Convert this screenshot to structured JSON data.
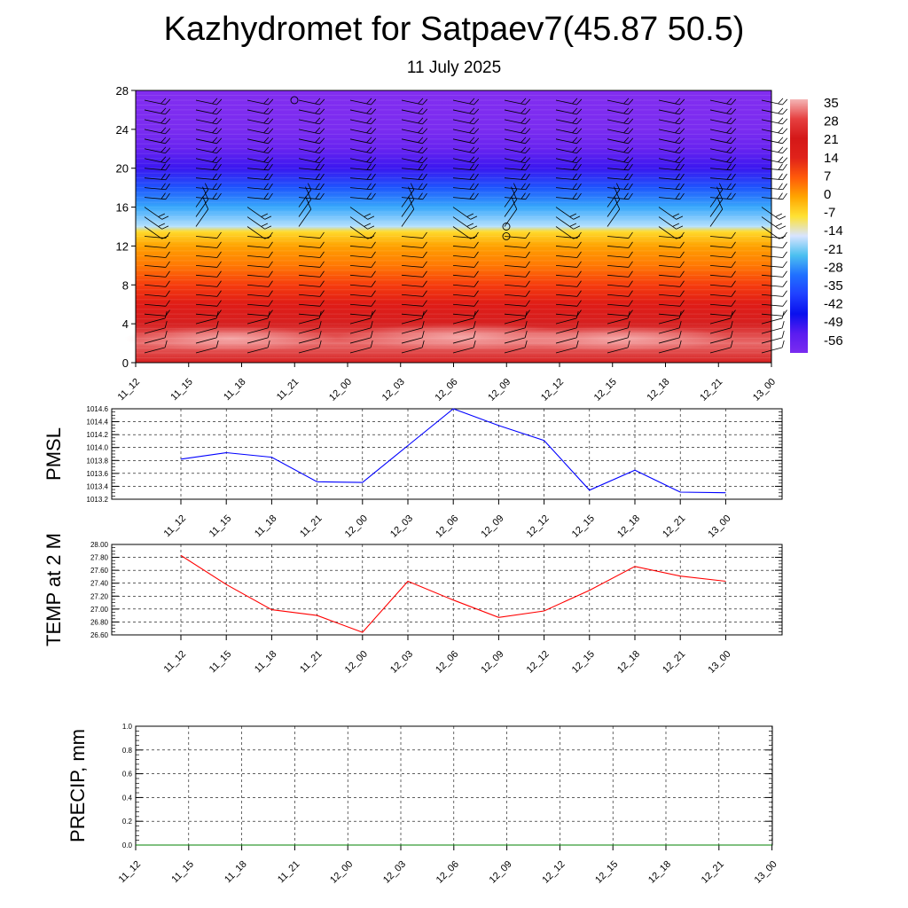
{
  "header": {
    "title": "Kazhydromet for Satpaev7(45.87 50.5)",
    "subtitle": "11 July 2025"
  },
  "time_labels": [
    "11_12",
    "11_15",
    "11_18",
    "11_21",
    "12_00",
    "12_03",
    "12_06",
    "12_09",
    "12_12",
    "12_15",
    "12_18",
    "12_21",
    "13_00"
  ],
  "chart_data": [
    {
      "type": "heatmap",
      "title": "",
      "xlabel": "",
      "ylabel": "",
      "x": [
        "11_12",
        "11_15",
        "11_18",
        "11_21",
        "12_00",
        "12_03",
        "12_06",
        "12_09",
        "12_12",
        "12_15",
        "12_18",
        "12_21",
        "13_00"
      ],
      "ylim": [
        0,
        28
      ],
      "yticks": [
        0,
        4,
        8,
        12,
        16,
        20,
        24,
        28
      ],
      "colorbar_labels": [
        "35",
        "28",
        "21",
        "14",
        "7",
        "0",
        "-7",
        "-14",
        "-21",
        "-28",
        "-35",
        "-42",
        "-49",
        "-56"
      ],
      "colorbar_colors": [
        "#f4b6b6",
        "#e64040",
        "#d41818",
        "#e0221a",
        "#ff5a0a",
        "#ffa500",
        "#ffe233",
        "#d8e4ff",
        "#4cc0f0",
        "#2070ff",
        "#2040ff",
        "#0a10ee",
        "#5a1cf0",
        "#7a2cf0"
      ],
      "temperature_profile": [
        {
          "y": 0,
          "t": 28
        },
        {
          "y": 2,
          "t": 32
        },
        {
          "y": 4,
          "t": 28
        },
        {
          "y": 6,
          "t": 22
        },
        {
          "y": 8,
          "t": 16
        },
        {
          "y": 10,
          "t": 9
        },
        {
          "y": 12,
          "t": 3
        },
        {
          "y": 13.5,
          "t": -6
        },
        {
          "y": 14,
          "t": -15
        },
        {
          "y": 16,
          "t": -26
        },
        {
          "y": 18,
          "t": -36
        },
        {
          "y": 20,
          "t": -46
        },
        {
          "y": 22,
          "t": -52
        },
        {
          "y": 24,
          "t": -56
        },
        {
          "y": 28,
          "t": -58
        }
      ],
      "wind_barbs_present": true
    },
    {
      "type": "line",
      "ylabel": "PMSL",
      "x": [
        "11_12",
        "11_15",
        "11_18",
        "11_21",
        "12_00",
        "12_03",
        "12_06",
        "12_09",
        "12_12",
        "12_15",
        "12_18",
        "12_21",
        "13_00"
      ],
      "series": [
        {
          "values": [
            1013.82,
            1013.92,
            1013.85,
            1013.47,
            1013.46,
            1014.03,
            1014.6,
            1014.34,
            1014.11,
            1013.34,
            1013.65,
            1013.31,
            1013.3
          ],
          "color": "#0000ff"
        }
      ],
      "ylim": [
        1013.2,
        1014.6
      ],
      "yticks": [
        "1013.2",
        "1013.4",
        "1013.6",
        "1013.8",
        "1014.0",
        "1014.2",
        "1014.4",
        "1014.6"
      ],
      "grid": true
    },
    {
      "type": "line",
      "ylabel": "TEMP at 2 M",
      "x": [
        "11_12",
        "11_15",
        "11_18",
        "11_21",
        "12_00",
        "12_03",
        "12_06",
        "12_09",
        "12_12",
        "12_15",
        "12_18",
        "12_21",
        "13_00"
      ],
      "series": [
        {
          "values": [
            27.83,
            27.38,
            26.99,
            26.9,
            26.64,
            27.43,
            27.14,
            26.87,
            26.97,
            27.29,
            27.66,
            27.51,
            27.43
          ],
          "color": "#ff0000"
        }
      ],
      "ylim": [
        26.6,
        28.0
      ],
      "yticks": [
        "26.60",
        "26.80",
        "27.00",
        "27.20",
        "27.40",
        "27.60",
        "27.80",
        "28.00"
      ],
      "grid": true
    },
    {
      "type": "line",
      "ylabel": "PRECIP, mm",
      "x": [
        "11_12",
        "11_15",
        "11_18",
        "11_21",
        "12_00",
        "12_03",
        "12_06",
        "12_09",
        "12_12",
        "12_15",
        "12_18",
        "12_21",
        "13_00"
      ],
      "series": [
        {
          "values": [
            0,
            0,
            0,
            0,
            0,
            0,
            0,
            0,
            0,
            0,
            0,
            0,
            0
          ],
          "color": "#008000"
        }
      ],
      "ylim": [
        0,
        1.0
      ],
      "yticks": [
        "0.0",
        "0.2",
        "0.4",
        "0.6",
        "0.8",
        "1.0"
      ],
      "grid": true
    }
  ]
}
